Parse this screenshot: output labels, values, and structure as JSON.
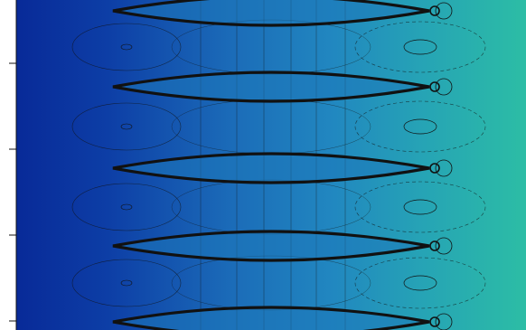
{
  "chart_data": {
    "type": "heatmap",
    "title": "",
    "xlabel": "",
    "ylabel": "",
    "colormap": {
      "low": "#0a2f9e",
      "mid": "#1f7dbd",
      "high": "#2bb8a3"
    },
    "contour_color": "#111111",
    "lens_bands": 4,
    "left_y_ticks": 4,
    "grid": false,
    "legend": "none",
    "notes_visible": []
  }
}
